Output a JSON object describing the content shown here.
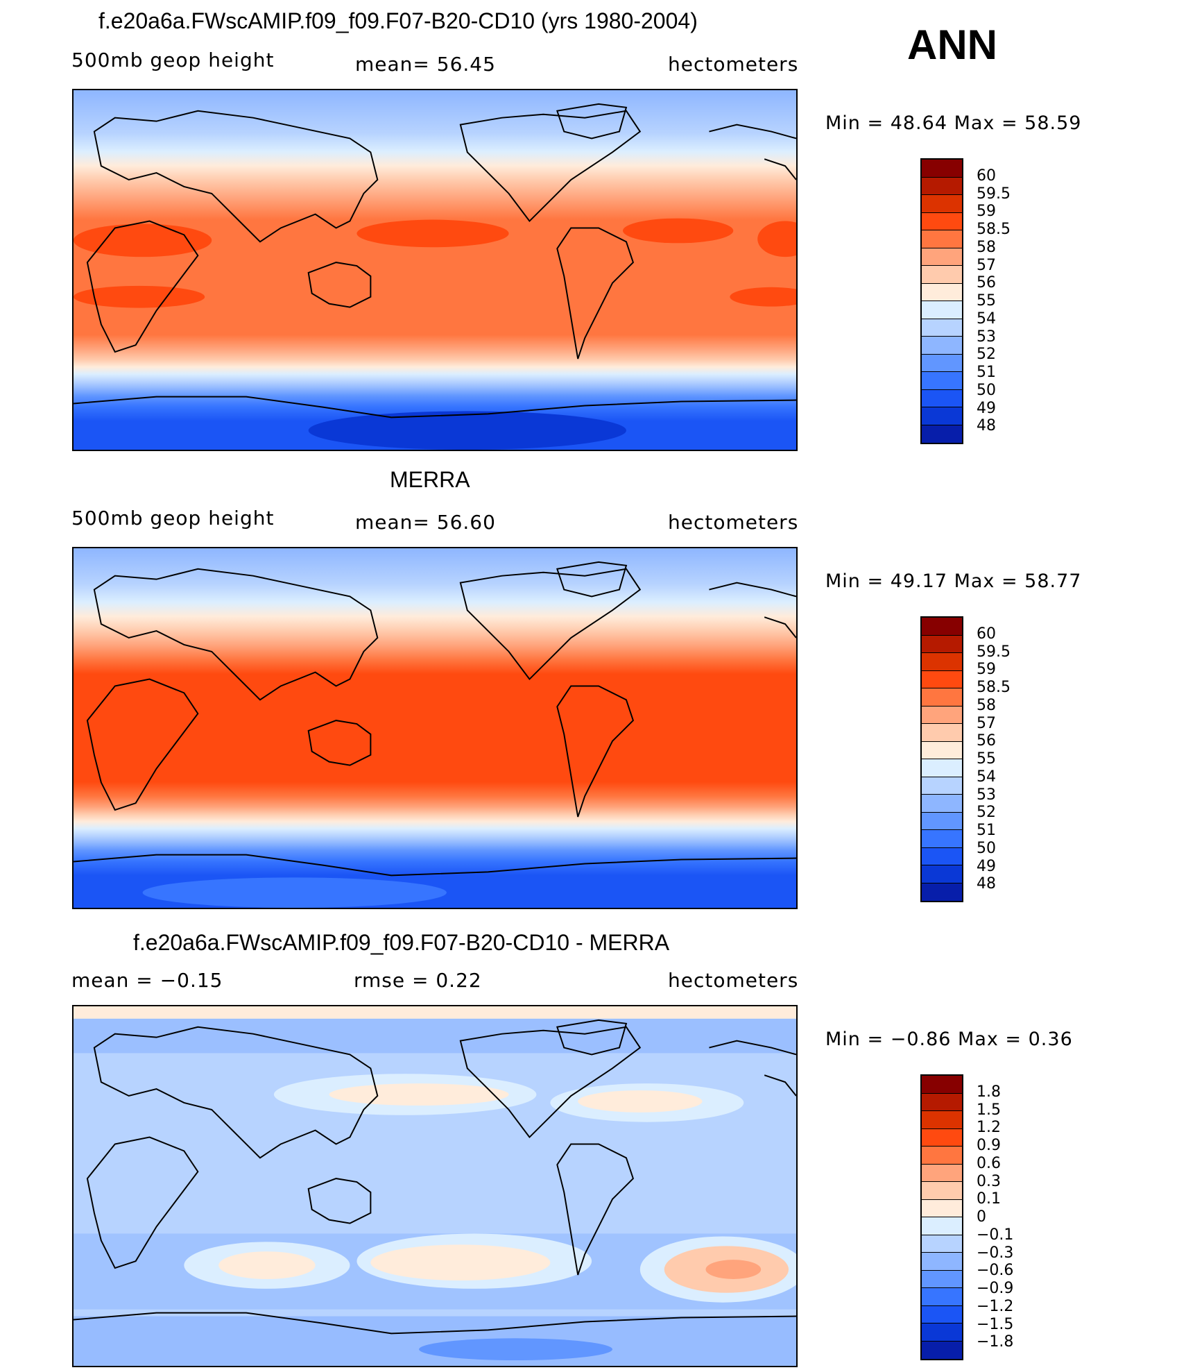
{
  "season": "ANN",
  "units_label": "hectometers",
  "panels": [
    {
      "id": "model",
      "title": "f.e20a6a.FWscAMIP.f09_f09.F07-B20-CD10 (yrs 1980-2004)",
      "left_label": "500mb geop height",
      "center_label": "mean=   56.45",
      "right_label": "hectometers",
      "minmax_label": "Min =   48.64 Max =   58.59"
    },
    {
      "id": "merra",
      "title": "MERRA",
      "left_label": "500mb geop height",
      "center_label": "mean=   56.60",
      "right_label": "hectometers",
      "minmax_label": "Min =   49.17 Max =   58.77"
    },
    {
      "id": "difference",
      "title": "f.e20a6a.FWscAMIP.f09_f09.F07-B20-CD10 - MERRA",
      "left_label": "mean =   −0.15",
      "center_label": "rmse =    0.22",
      "right_label": "hectometers",
      "minmax_label": "Min =   −0.86 Max =    0.36"
    }
  ],
  "colorbars": {
    "absolute": {
      "labels": [
        "60",
        "59.5",
        "59",
        "58.5",
        "58",
        "57",
        "56",
        "55",
        "54",
        "53",
        "52",
        "51",
        "50",
        "49",
        "48"
      ],
      "colors": [
        "#870000",
        "#b51a00",
        "#dc3300",
        "#ff4a10",
        "#ff7640",
        "#ffa47c",
        "#ffcbad",
        "#ffecdb",
        "#dbeeff",
        "#b7d3ff",
        "#8eb6ff",
        "#6196ff",
        "#3775ff",
        "#1b55f5",
        "#0a38d6",
        "#071eaa"
      ]
    },
    "difference": {
      "labels": [
        "1.8",
        "1.5",
        "1.2",
        "0.9",
        "0.6",
        "0.3",
        "0.1",
        "0",
        "−0.1",
        "−0.3",
        "−0.6",
        "−0.9",
        "−1.2",
        "−1.5",
        "−1.8"
      ],
      "colors": [
        "#870000",
        "#b51a00",
        "#dc3300",
        "#ff4a10",
        "#ff7640",
        "#ffa47c",
        "#ffcbad",
        "#ffecdb",
        "#dbeeff",
        "#b7d3ff",
        "#8eb6ff",
        "#6196ff",
        "#3775ff",
        "#1b55f5",
        "#0a38d6",
        "#071eaa"
      ]
    }
  },
  "chart_data": [
    {
      "type": "heatmap",
      "title": "f.e20a6a.FWscAMIP.f09_f09.F07-B20-CD10 (yrs 1980-2004)",
      "variable": "500mb geop height",
      "units": "hectometers",
      "mean": 56.45,
      "min": 48.64,
      "max": 58.59,
      "levels": [
        48,
        49,
        50,
        51,
        52,
        53,
        54,
        55,
        56,
        57,
        58,
        58.5,
        59,
        59.5,
        60
      ]
    },
    {
      "type": "heatmap",
      "title": "MERRA",
      "variable": "500mb geop height",
      "units": "hectometers",
      "mean": 56.6,
      "min": 49.17,
      "max": 58.77,
      "levels": [
        48,
        49,
        50,
        51,
        52,
        53,
        54,
        55,
        56,
        57,
        58,
        58.5,
        59,
        59.5,
        60
      ]
    },
    {
      "type": "heatmap",
      "title": "f.e20a6a.FWscAMIP.f09_f09.F07-B20-CD10 - MERRA",
      "units": "hectometers",
      "mean": -0.15,
      "rmse": 0.22,
      "min": -0.86,
      "max": 0.36,
      "levels": [
        -1.8,
        -1.5,
        -1.2,
        -0.9,
        -0.6,
        -0.3,
        -0.1,
        0,
        0.1,
        0.3,
        0.6,
        0.9,
        1.2,
        1.5,
        1.8
      ]
    }
  ]
}
